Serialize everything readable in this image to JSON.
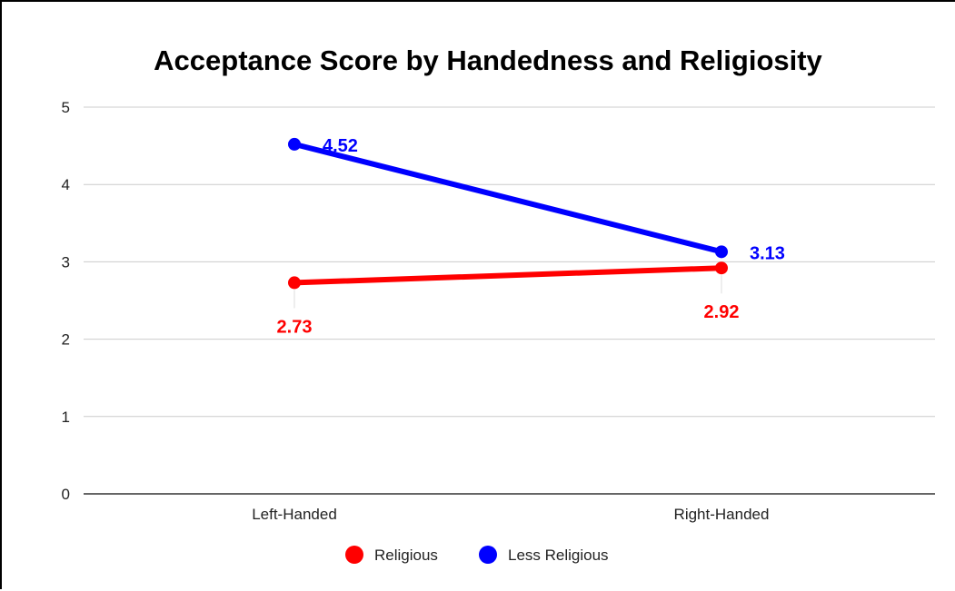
{
  "chart_data": {
    "type": "line",
    "title": "Acceptance Score by Handedness and Religiosity",
    "xlabel": "",
    "ylabel": "",
    "categories": [
      "Left-Handed",
      "Right-Handed"
    ],
    "ylim": [
      0,
      5
    ],
    "yticks": [
      "0",
      "1",
      "2",
      "3",
      "4",
      "5"
    ],
    "grid": true,
    "legend_position": "bottom",
    "series": [
      {
        "name": "Religious",
        "values": [
          2.73,
          2.92
        ],
        "labels": [
          "2.73",
          "2.92"
        ],
        "color": "#ff0000",
        "label_position": "below"
      },
      {
        "name": "Less Religious",
        "values": [
          4.52,
          3.13
        ],
        "labels": [
          "4.52",
          "3.13"
        ],
        "color": "#0000ff",
        "label_position": "right"
      }
    ]
  }
}
